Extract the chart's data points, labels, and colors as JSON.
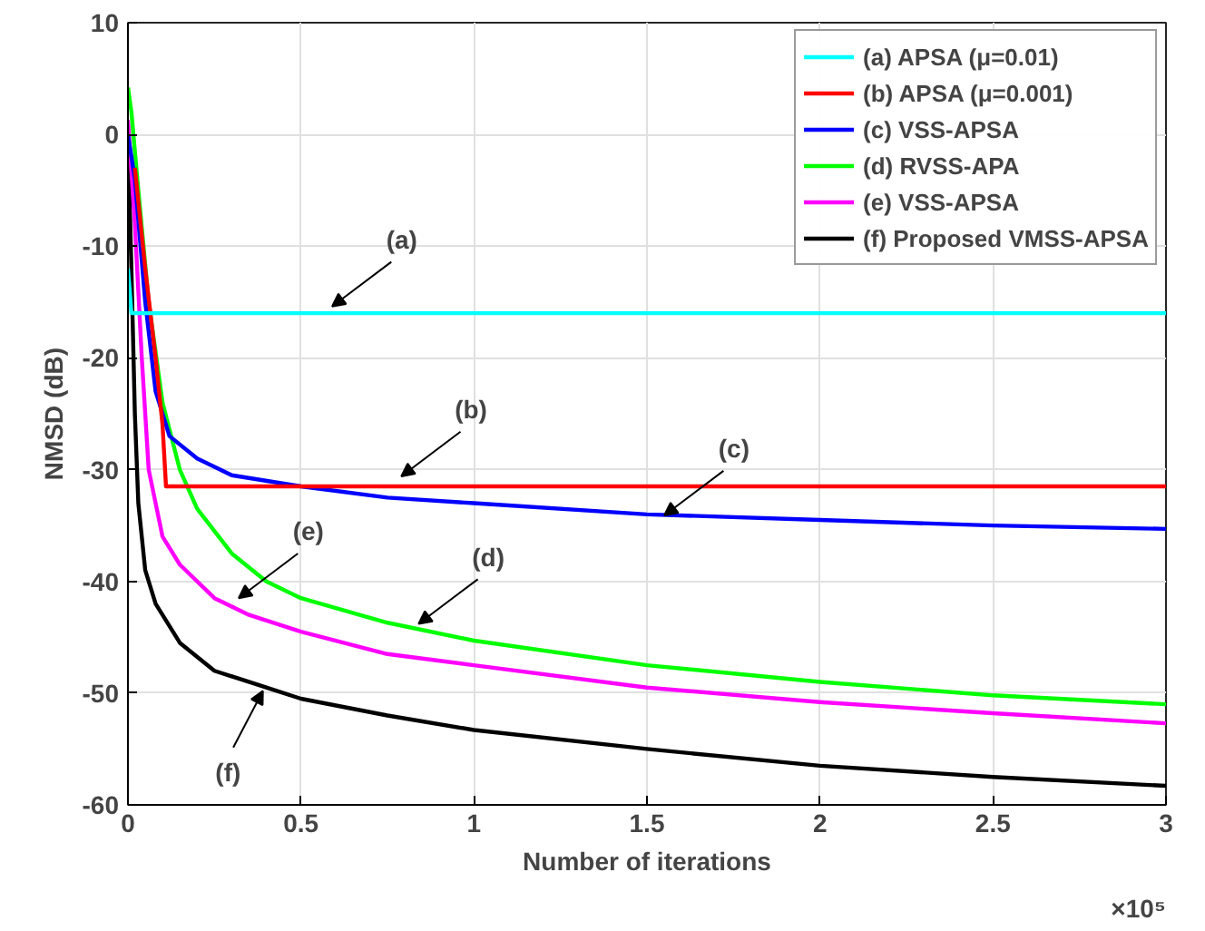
{
  "chart_data": {
    "type": "line",
    "xlabel": "Number of iterations",
    "ylabel": "NMSD (dB)",
    "xlim": [
      0,
      3
    ],
    "ylim": [
      -60,
      10
    ],
    "xticks": [
      0,
      0.5,
      1,
      1.5,
      2,
      2.5,
      3
    ],
    "yticks": [
      -60,
      -50,
      -40,
      -30,
      -20,
      -10,
      0,
      10
    ],
    "grid": true,
    "legend": "top right",
    "series": [
      {
        "name": "(a) APSA (μ=0.01)",
        "color": "#00ffff",
        "x": [
          0,
          0.01,
          0.02,
          0.5,
          1,
          1.5,
          2,
          2.5,
          3
        ],
        "values": [
          -12,
          -16,
          -16,
          -16,
          -16,
          -16,
          -16,
          -16,
          -16
        ]
      },
      {
        "name": "(b) APSA (μ=0.001)",
        "color": "#ff0000",
        "x": [
          0.02,
          0.03,
          0.05,
          0.08,
          0.1,
          0.11,
          0.5,
          1,
          1.5,
          2,
          2.5,
          3
        ],
        "values": [
          -3,
          -6,
          -12,
          -20,
          -26,
          -31.5,
          -31.5,
          -31.5,
          -31.5,
          -31.5,
          -31.5,
          -31.5
        ]
      },
      {
        "name": "(c) VSS-APSA",
        "color": "#0000ff",
        "x": [
          0,
          0.02,
          0.05,
          0.08,
          0.12,
          0.2,
          0.3,
          0.5,
          0.75,
          1,
          1.5,
          2,
          2.5,
          3
        ],
        "values": [
          0,
          -4,
          -15,
          -23,
          -27,
          -29,
          -30.5,
          -31.5,
          -32.5,
          -33,
          -34,
          -34.5,
          -35,
          -35.3
        ]
      },
      {
        "name": "(d) RVSS-APA",
        "color": "#00ff00",
        "x": [
          0,
          0.01,
          0.03,
          0.06,
          0.1,
          0.15,
          0.2,
          0.3,
          0.4,
          0.5,
          0.75,
          1,
          1.5,
          2,
          2.5,
          3
        ],
        "values": [
          4.2,
          2,
          -5,
          -15,
          -24,
          -30,
          -33.5,
          -37.5,
          -40,
          -41.5,
          -43.7,
          -45.3,
          -47.5,
          -49,
          -50.2,
          -51
        ]
      },
      {
        "name": "(e) VSS-APSA",
        "color": "#ff00ff",
        "x": [
          0,
          0.02,
          0.04,
          0.06,
          0.1,
          0.15,
          0.25,
          0.35,
          0.5,
          0.75,
          1,
          1.5,
          2,
          2.5,
          3
        ],
        "values": [
          1.3,
          -8,
          -20,
          -30,
          -36,
          -38.5,
          -41.5,
          -43,
          -44.5,
          -46.5,
          -47.5,
          -49.5,
          -50.8,
          -51.8,
          -52.7
        ]
      },
      {
        "name": "(f) Proposed VMSS-APSA",
        "color": "#000000",
        "x": [
          0,
          0.01,
          0.02,
          0.03,
          0.05,
          0.08,
          0.15,
          0.25,
          0.4,
          0.5,
          0.75,
          1,
          1.5,
          2,
          2.5,
          3
        ],
        "values": [
          0,
          -12,
          -25,
          -33,
          -39,
          -42,
          -45.5,
          -48,
          -49.5,
          -50.5,
          -52,
          -53.3,
          -55,
          -56.5,
          -57.5,
          -58.3
        ]
      }
    ],
    "annotations": [
      {
        "text": "(a)",
        "x": 0.59,
        "y": -15.4
      },
      {
        "text": "(b)",
        "x": 0.79,
        "y": -30.6
      },
      {
        "text": "(c)",
        "x": 1.55,
        "y": -34.1
      },
      {
        "text": "(d)",
        "x": 0.84,
        "y": -43.8
      },
      {
        "text": "(e)",
        "x": 0.32,
        "y": -41.5
      },
      {
        "text": "(f)",
        "x": 0.39,
        "y": -49.8
      },
      "×10⁵"
    ]
  }
}
